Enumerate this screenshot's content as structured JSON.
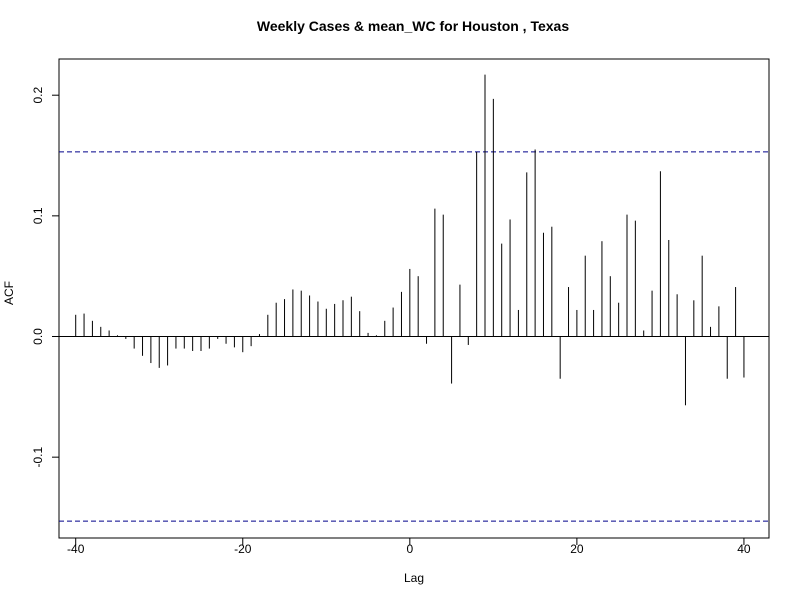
{
  "chart_data": {
    "type": "bar",
    "title": "Weekly Cases & mean_WC for Houston , Texas",
    "xlabel": "Lag",
    "ylabel": "ACF",
    "xlim": [
      -42,
      43
    ],
    "ylim": [
      -0.167,
      0.23
    ],
    "x_ticks": [
      -40,
      -20,
      0,
      20,
      40
    ],
    "x_tick_labels": [
      "-40",
      "-20",
      "0",
      "20",
      "40"
    ],
    "y_ticks": [
      -0.1,
      0.0,
      0.1,
      0.2
    ],
    "y_tick_labels": [
      "-0.1",
      "0.0",
      "0.1",
      "0.2"
    ],
    "confidence_bounds": [
      0.153,
      -0.153
    ],
    "lags": [
      -40,
      -39,
      -38,
      -37,
      -36,
      -35,
      -34,
      -33,
      -32,
      -31,
      -30,
      -29,
      -28,
      -27,
      -26,
      -25,
      -24,
      -23,
      -22,
      -21,
      -20,
      -19,
      -18,
      -17,
      -16,
      -15,
      -14,
      -13,
      -12,
      -11,
      -10,
      -9,
      -8,
      -7,
      -6,
      -5,
      -4,
      -3,
      -2,
      -1,
      0,
      1,
      2,
      3,
      4,
      5,
      6,
      7,
      8,
      9,
      10,
      11,
      12,
      13,
      14,
      15,
      16,
      17,
      18,
      19,
      20,
      21,
      22,
      23,
      24,
      25,
      26,
      27,
      28,
      29,
      30,
      31,
      32,
      33,
      34,
      35,
      36,
      37,
      38,
      39,
      40
    ],
    "values": [
      0.018,
      0.019,
      0.013,
      0.008,
      0.005,
      0.001,
      -0.002,
      -0.01,
      -0.016,
      -0.022,
      -0.026,
      -0.024,
      -0.01,
      -0.01,
      -0.012,
      -0.012,
      -0.01,
      -0.002,
      -0.006,
      -0.009,
      -0.013,
      -0.008,
      0.002,
      0.018,
      0.028,
      0.031,
      0.039,
      0.038,
      0.034,
      0.029,
      0.023,
      0.027,
      0.03,
      0.033,
      0.021,
      0.003,
      0.001,
      0.013,
      0.024,
      0.037,
      0.056,
      0.05,
      -0.006,
      0.106,
      0.101,
      -0.039,
      0.043,
      -0.007,
      0.153,
      0.217,
      0.197,
      0.077,
      0.097,
      0.022,
      0.136,
      0.155,
      0.086,
      0.091,
      -0.035,
      0.041,
      0.022,
      0.067,
      0.022,
      0.079,
      0.05,
      0.028,
      0.101,
      0.096,
      0.005,
      0.038,
      0.137,
      0.08,
      0.035,
      -0.057,
      0.03,
      0.067,
      0.008,
      0.025,
      -0.035,
      0.041,
      -0.034
    ],
    "grid": false,
    "colors": {
      "stems": "#000000",
      "bounds": "#00008b",
      "axes": "#000000"
    }
  }
}
